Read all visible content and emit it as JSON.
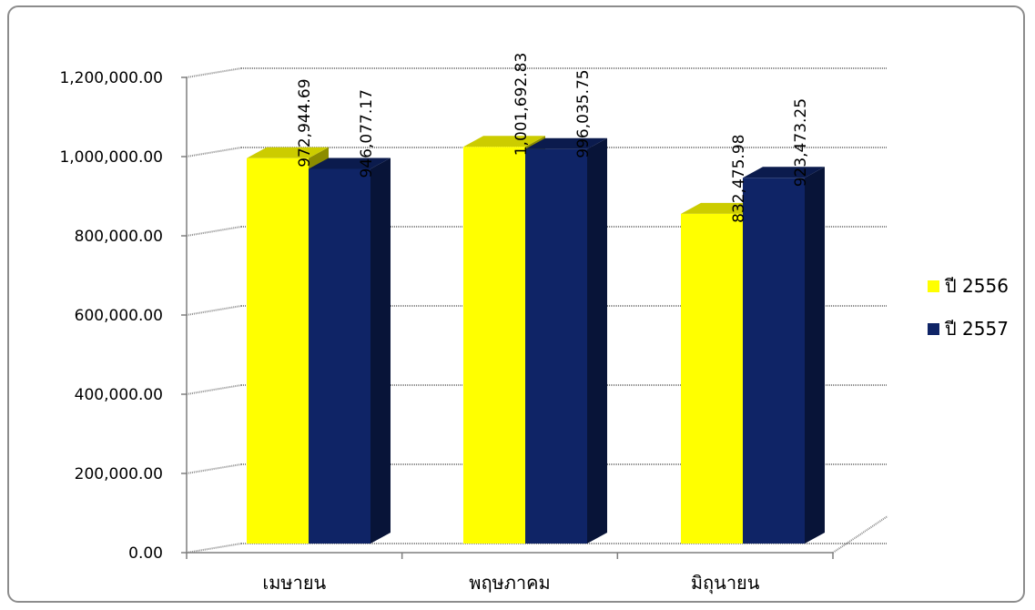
{
  "chart_data": {
    "type": "bar",
    "style": "3d-clustered-column",
    "categories": [
      "เมษายน",
      "พฤษภาคม",
      "มิถุนายน"
    ],
    "series": [
      {
        "name": "ปี 2556",
        "color": "#FFFF00",
        "values": [
          972944.69,
          1001692.83,
          832475.98
        ],
        "labels": [
          "972,944.69",
          "1,001,692.83",
          "832,475.98"
        ]
      },
      {
        "name": "ปี 2557",
        "color": "#0F2466",
        "values": [
          946077.17,
          996035.75,
          923473.25
        ],
        "labels": [
          "946,077.17",
          "996,035.75",
          "923,473.25"
        ]
      }
    ],
    "ylim": [
      0,
      1200000
    ],
    "yticks": [
      0,
      200000,
      400000,
      600000,
      800000,
      1000000,
      1200000
    ],
    "ytick_labels": [
      "0.00",
      "200,000.00",
      "400,000.00",
      "600,000.00",
      "800,000.00",
      "1,000,000.00",
      "1,200,000.00"
    ],
    "title": "",
    "xlabel": "",
    "ylabel": "",
    "grid": true,
    "legend_position": "right"
  }
}
